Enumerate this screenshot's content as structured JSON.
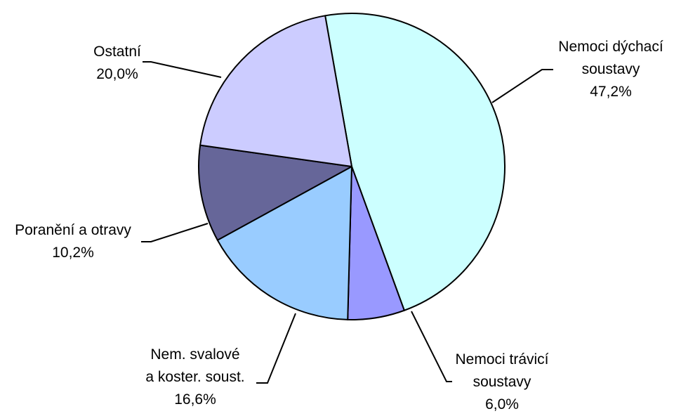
{
  "chart_data": {
    "type": "pie",
    "start_angle_deg": -10,
    "direction": "clockwise",
    "slices": [
      {
        "name_lines": [
          "Nemoci dýchací",
          "soustavy"
        ],
        "percent_label": "47,2%",
        "value": 47.2,
        "color": "#ccffff"
      },
      {
        "name_lines": [
          "Nemoci trávicí",
          "soustavy"
        ],
        "percent_label": "6,0%",
        "value": 6.0,
        "color": "#9999ff"
      },
      {
        "name_lines": [
          "Nem. svalové",
          "a koster. soust."
        ],
        "percent_label": "16,6%",
        "value": 16.6,
        "color": "#99ccff"
      },
      {
        "name_lines": [
          "Poranění a otravy"
        ],
        "percent_label": "10,2%",
        "value": 10.2,
        "color": "#666699"
      },
      {
        "name_lines": [
          "Ostatní"
        ],
        "percent_label": "20,0%",
        "value": 20.0,
        "color": "#ccccff"
      }
    ]
  }
}
